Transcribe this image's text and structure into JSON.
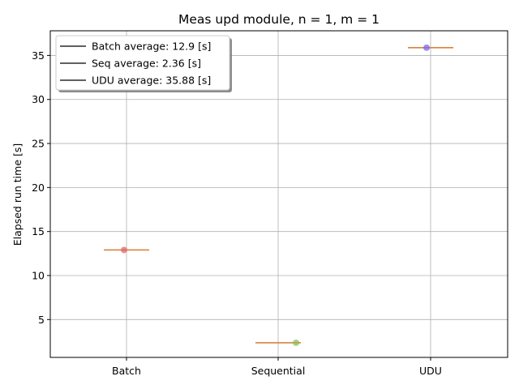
{
  "chart_data": {
    "type": "scatter",
    "title": "Meas upd module, n = 1, m = 1",
    "xlabel": "",
    "ylabel": "Elapsed run time [s]",
    "categories": [
      "Batch",
      "Sequential",
      "UDU"
    ],
    "ylim": [
      0.7,
      37.8
    ],
    "yticks": [
      5,
      10,
      15,
      20,
      25,
      30,
      35
    ],
    "grid": true,
    "legend_position": "top-left",
    "legend": [
      "Batch average: 12.9 [s]",
      "Seq average: 2.36 [s]",
      "UDU average: 35.88 [s]"
    ],
    "series": [
      {
        "category": "Batch",
        "value": 12.9,
        "average": 12.9,
        "color": "#e06666"
      },
      {
        "category": "Sequential",
        "value": 2.36,
        "average": 2.36,
        "color": "#8fbc5a"
      },
      {
        "category": "UDU",
        "value": 35.88,
        "average": 35.88,
        "color": "#7b68ee"
      }
    ],
    "average_line_color": "#d9823b",
    "grid_color": "#b0b0b0"
  }
}
